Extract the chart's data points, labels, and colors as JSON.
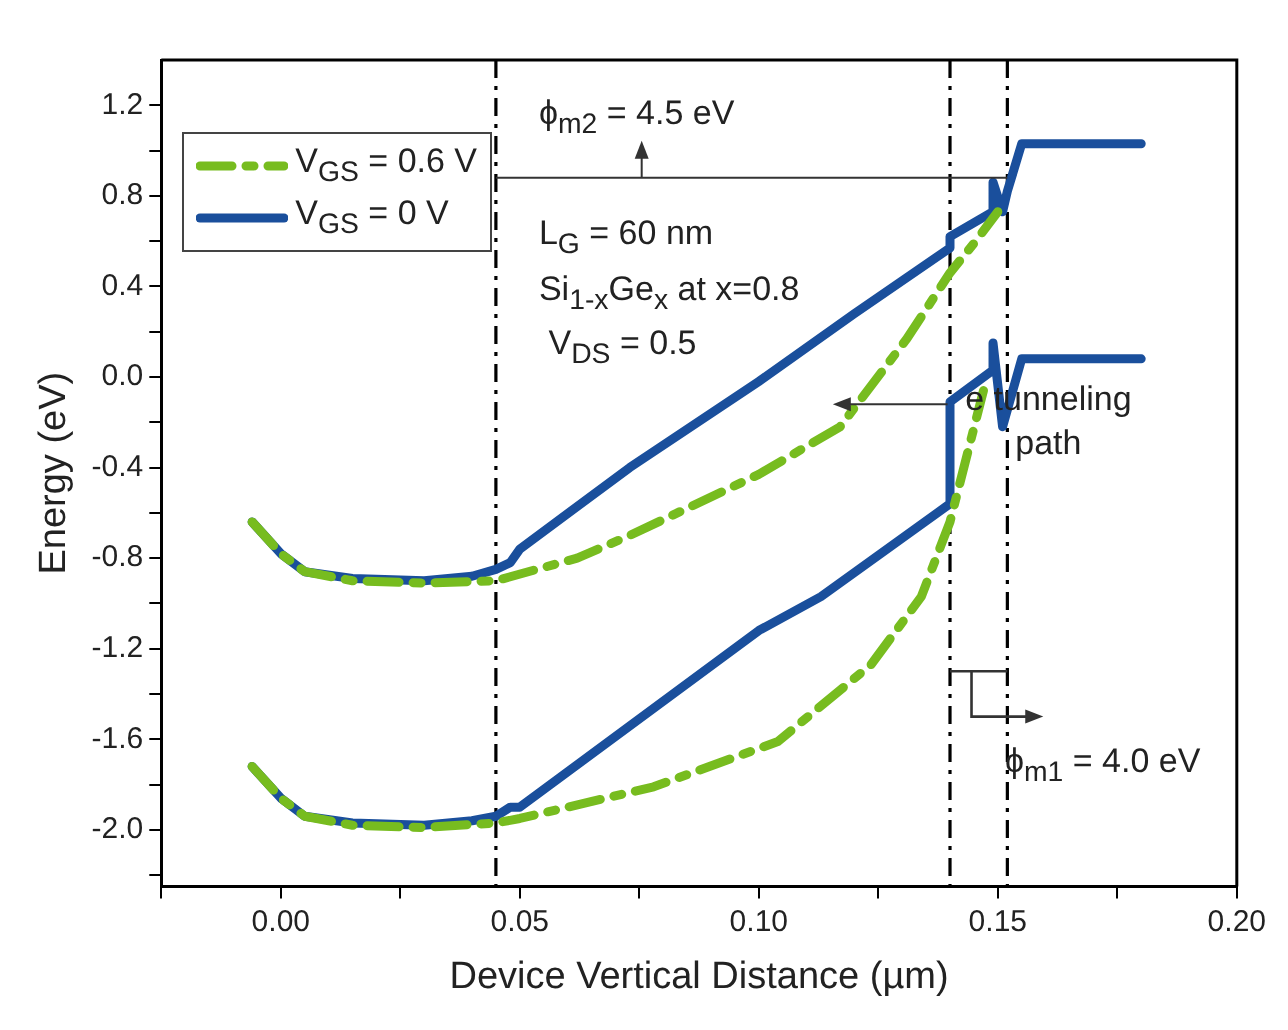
{
  "chart_data": {
    "type": "line",
    "xlabel": "Device Vertical Distance (µm)",
    "ylabel": "Energy (eV)",
    "xlim": [
      -0.025,
      0.2
    ],
    "xticks": [
      {
        "value": -0.025,
        "label": null
      },
      "0.00",
      {
        "value": 0.025,
        "label": null
      },
      {
        "value": 0.05,
        "label": "0.05"
      },
      {
        "value": 0.075,
        "label": null
      },
      {
        "value": 0.1,
        "label": "0.10"
      },
      {
        "value": 0.125,
        "label": null
      },
      {
        "value": 0.15,
        "label": "0.15"
      },
      {
        "value": 0.175,
        "label": null
      },
      {
        "value": 0.2,
        "label": "0.20"
      }
    ],
    "ylim": [
      -2.25,
      1.4
    ],
    "yticks": [
      {
        "value": -2.2,
        "label": null
      },
      {
        "value": -2.0,
        "label": "-2.0"
      },
      {
        "value": -1.8,
        "label": null
      },
      {
        "value": -1.6,
        "label": "-1.6"
      },
      {
        "value": -1.4,
        "label": null
      },
      {
        "value": -1.2,
        "label": "-1.2"
      },
      {
        "value": -1.0,
        "label": null
      },
      {
        "value": -0.8,
        "label": "-0.8"
      },
      {
        "value": -0.6,
        "label": null
      },
      {
        "value": -0.4,
        "label": "-0.4"
      },
      {
        "value": -0.2,
        "label": null
      },
      {
        "value": 0,
        "label": "0.0"
      },
      {
        "value": 0.2,
        "label": null
      },
      {
        "value": 0.4,
        "label": "0.4"
      },
      {
        "value": 0.6,
        "label": null
      },
      {
        "value": 0.8,
        "label": "0.8"
      },
      {
        "value": 1.0,
        "label": null
      },
      {
        "value": 1.2,
        "label": "1.2"
      }
    ],
    "grid": false,
    "legend": "top left",
    "marker": "none",
    "series": [
      {
        "name": "V$_{GS}$ = 0.6 V",
        "color": "#77bc1f",
        "line_style": "dashed",
        "x": [
          -0.006,
          0.0,
          0.005,
          0.015,
          0.03,
          0.045,
          0.062,
          0.073,
          0.1,
          0.117,
          0.131,
          0.14,
          0.145,
          0.15
        ],
        "values": [
          -0.64,
          -0.78,
          -0.86,
          -0.9,
          -0.91,
          -0.9,
          -0.8,
          -0.7,
          -0.43,
          -0.22,
          0.17,
          0.46,
          0.59,
          0.73
        ]
      },
      {
        "name": "V$_{GS}$ = 0 V",
        "color": "#1a4f9c",
        "line_style": "solid",
        "x": [
          -0.006,
          0.0,
          0.005,
          0.015,
          0.03,
          0.04,
          0.045,
          0.048,
          0.05,
          0.073,
          0.1,
          0.12,
          0.14,
          0.14,
          0.149,
          0.149,
          0.151,
          0.152,
          0.155,
          0.18
        ],
        "values": [
          -0.64,
          -0.78,
          -0.86,
          -0.89,
          -0.9,
          -0.88,
          -0.85,
          -0.82,
          -0.76,
          -0.4,
          -0.02,
          0.28,
          0.57,
          0.62,
          0.73,
          0.86,
          0.73,
          0.82,
          1.03,
          1.03
        ]
      },
      {
        "color": "#77bc1f",
        "line_style": "dashed",
        "x": [
          -0.006,
          0.0,
          0.005,
          0.015,
          0.03,
          0.045,
          0.05,
          0.078,
          0.104,
          0.1235,
          0.134,
          0.14,
          0.147
        ],
        "values": [
          -1.72,
          -1.86,
          -1.94,
          -1.98,
          -1.99,
          -1.97,
          -1.95,
          -1.81,
          -1.61,
          -1.27,
          -0.97,
          -0.64,
          -0.06
        ]
      },
      {
        "color": "#1a4f9c",
        "line_style": "solid",
        "x": [
          -0.006,
          0.0,
          0.005,
          0.015,
          0.03,
          0.04,
          0.045,
          0.048,
          0.05,
          0.1,
          0.113,
          0.14,
          0.14,
          0.149,
          0.149,
          0.151,
          0.155,
          0.18
        ],
        "values": [
          -1.72,
          -1.86,
          -1.94,
          -1.97,
          -1.98,
          -1.96,
          -1.94,
          -1.9,
          -1.9,
          -1.12,
          -0.97,
          -0.56,
          -0.11,
          0.03,
          0.15,
          -0.22,
          0.08,
          0.08
        ]
      }
    ],
    "ref_lines": [
      {
        "axis": "x",
        "value": 0.045,
        "line_style": "dashed",
        "color": "#000000"
      },
      {
        "axis": "x",
        "value": 0.14,
        "line_style": "dashed",
        "color": "#000000"
      },
      {
        "axis": "x",
        "value": 0.152,
        "line_style": "dashed",
        "color": "#000000"
      }
    ],
    "annotations": [
      "ϕ$_{m2}$ = 4.5 eV",
      "L$_{G}$ =  60 nm",
      "Si$_{1-x}$Ge$_{x}$ at x=0.8",
      "V$_{DS}$ = 0.5",
      {
        "text": "e tunneling path",
        "x": 0.14,
        "y": -0.12
      },
      "ϕ$_{m1}$ = 4.0 eV"
    ]
  }
}
